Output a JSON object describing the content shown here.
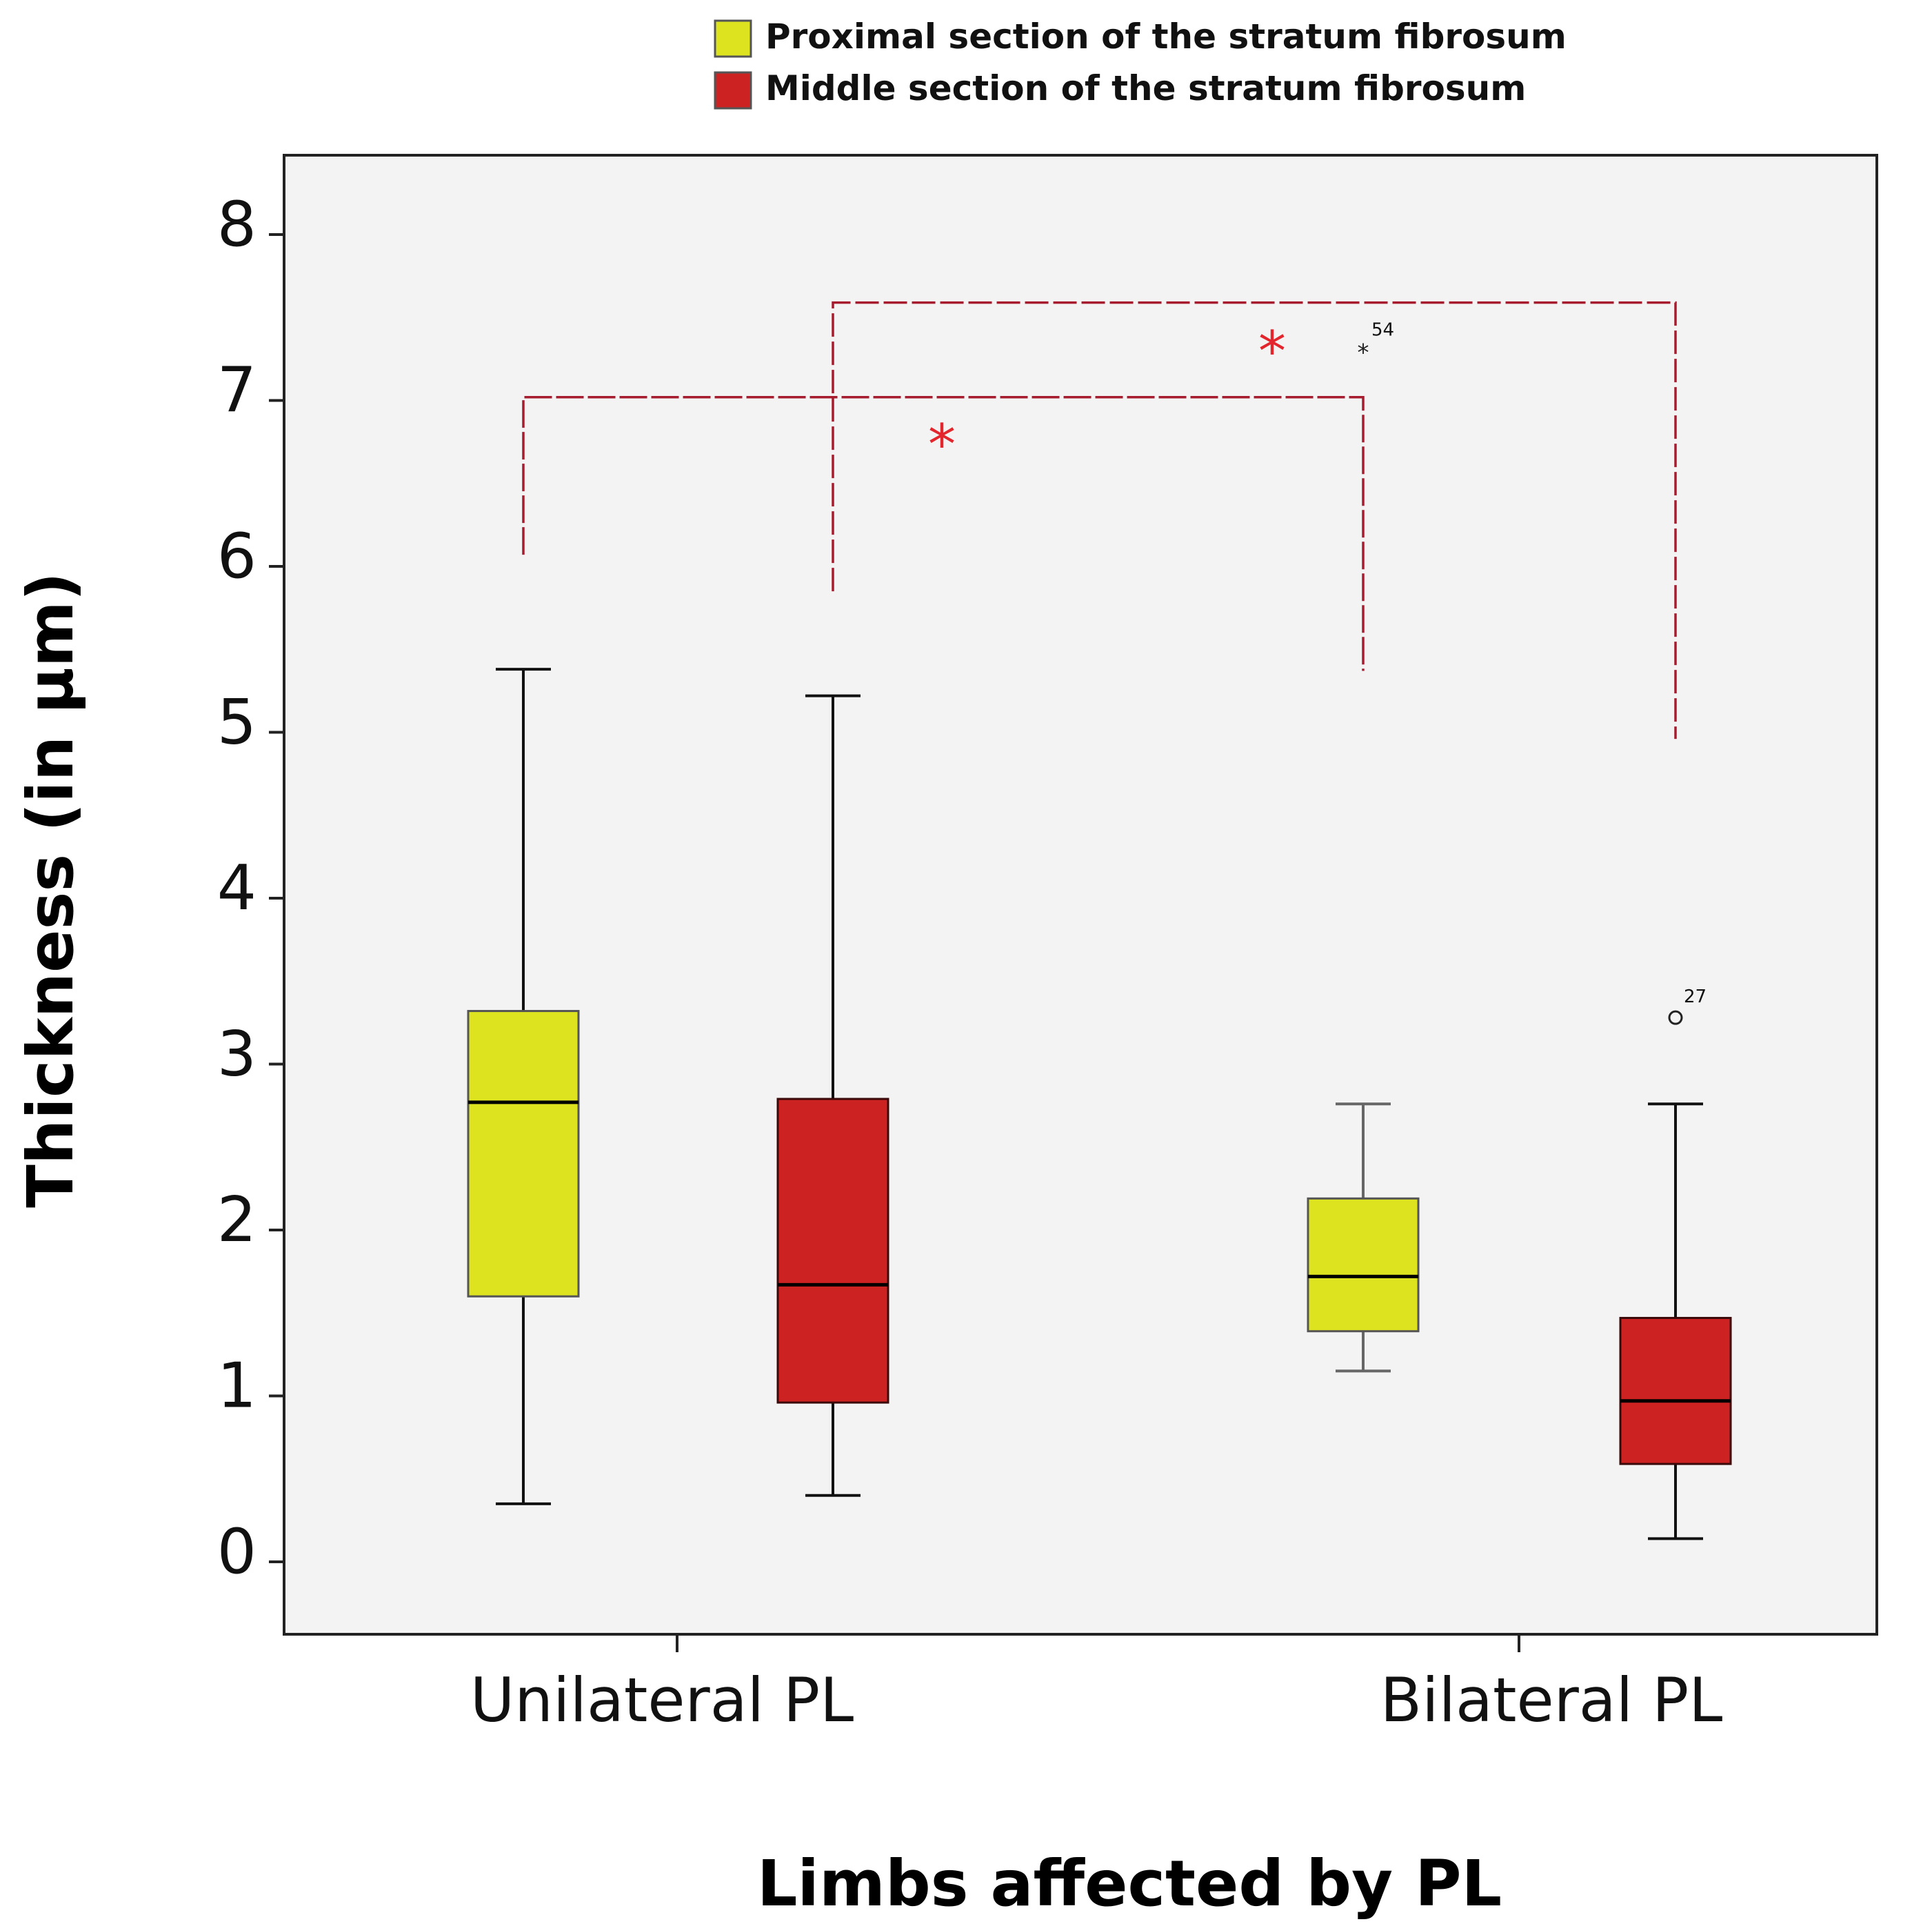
{
  "colors": {
    "proximal": "#dde31e",
    "middle": "#cc2222",
    "bracket": "#a61c2e",
    "significance": "#e3262d",
    "plot_background": "#f3f3f3",
    "axis": "#222222"
  },
  "chart_data": {
    "type": "boxplot",
    "title": "",
    "xlabel": "Limbs affected by PL",
    "ylabel": "Thickness (in µm)",
    "ylim": [
      -0.45,
      8.45
    ],
    "yticks": [
      0,
      1,
      2,
      3,
      4,
      5,
      6,
      7,
      8
    ],
    "categories": [
      "Unilateral PL",
      "Bilateral PL"
    ],
    "legend": {
      "position": "top-center",
      "entries": [
        {
          "key": "proximal",
          "label": "Proximal section of the stratum fibrosum"
        },
        {
          "key": "middle",
          "label": "Middle section of the stratum fibrosum"
        }
      ]
    },
    "series": [
      {
        "name": "Proximal section of the stratum fibrosum",
        "key": "proximal",
        "boxes": [
          {
            "category": "Unilateral PL",
            "whisker_low": 0.35,
            "q1": 1.6,
            "median": 2.77,
            "q3": 3.32,
            "whisker_high": 5.38
          },
          {
            "category": "Bilateral PL",
            "whisker_low": 1.15,
            "q1": 1.39,
            "median": 1.72,
            "q3": 2.19,
            "whisker_high": 2.76
          }
        ]
      },
      {
        "name": "Middle section of the stratum fibrosum",
        "key": "middle",
        "boxes": [
          {
            "category": "Unilateral PL",
            "whisker_low": 0.4,
            "q1": 0.96,
            "median": 1.67,
            "q3": 2.79,
            "whisker_high": 5.22
          },
          {
            "category": "Bilateral PL",
            "whisker_low": 0.14,
            "q1": 0.59,
            "median": 0.97,
            "q3": 1.47,
            "whisker_high": 2.76
          }
        ]
      }
    ],
    "outliers": [
      {
        "series": "proximal",
        "category": "Bilateral PL",
        "value": 7.3,
        "label": "54",
        "marker": "*"
      },
      {
        "series": "middle",
        "category": "Bilateral PL",
        "value": 3.28,
        "label": "27",
        "marker": "o"
      }
    ],
    "significance": [
      {
        "from": "proximal | Unilateral PL",
        "to": "proximal | Bilateral PL",
        "bar_level": 7.02,
        "left_end": 6.07,
        "right_end": 5.37,
        "marker": "*"
      },
      {
        "from": "middle | Unilateral PL",
        "to": "middle | Bilateral PL",
        "bar_level": 7.59,
        "left_end": 5.85,
        "right_end": 4.96,
        "marker": "*"
      }
    ]
  }
}
